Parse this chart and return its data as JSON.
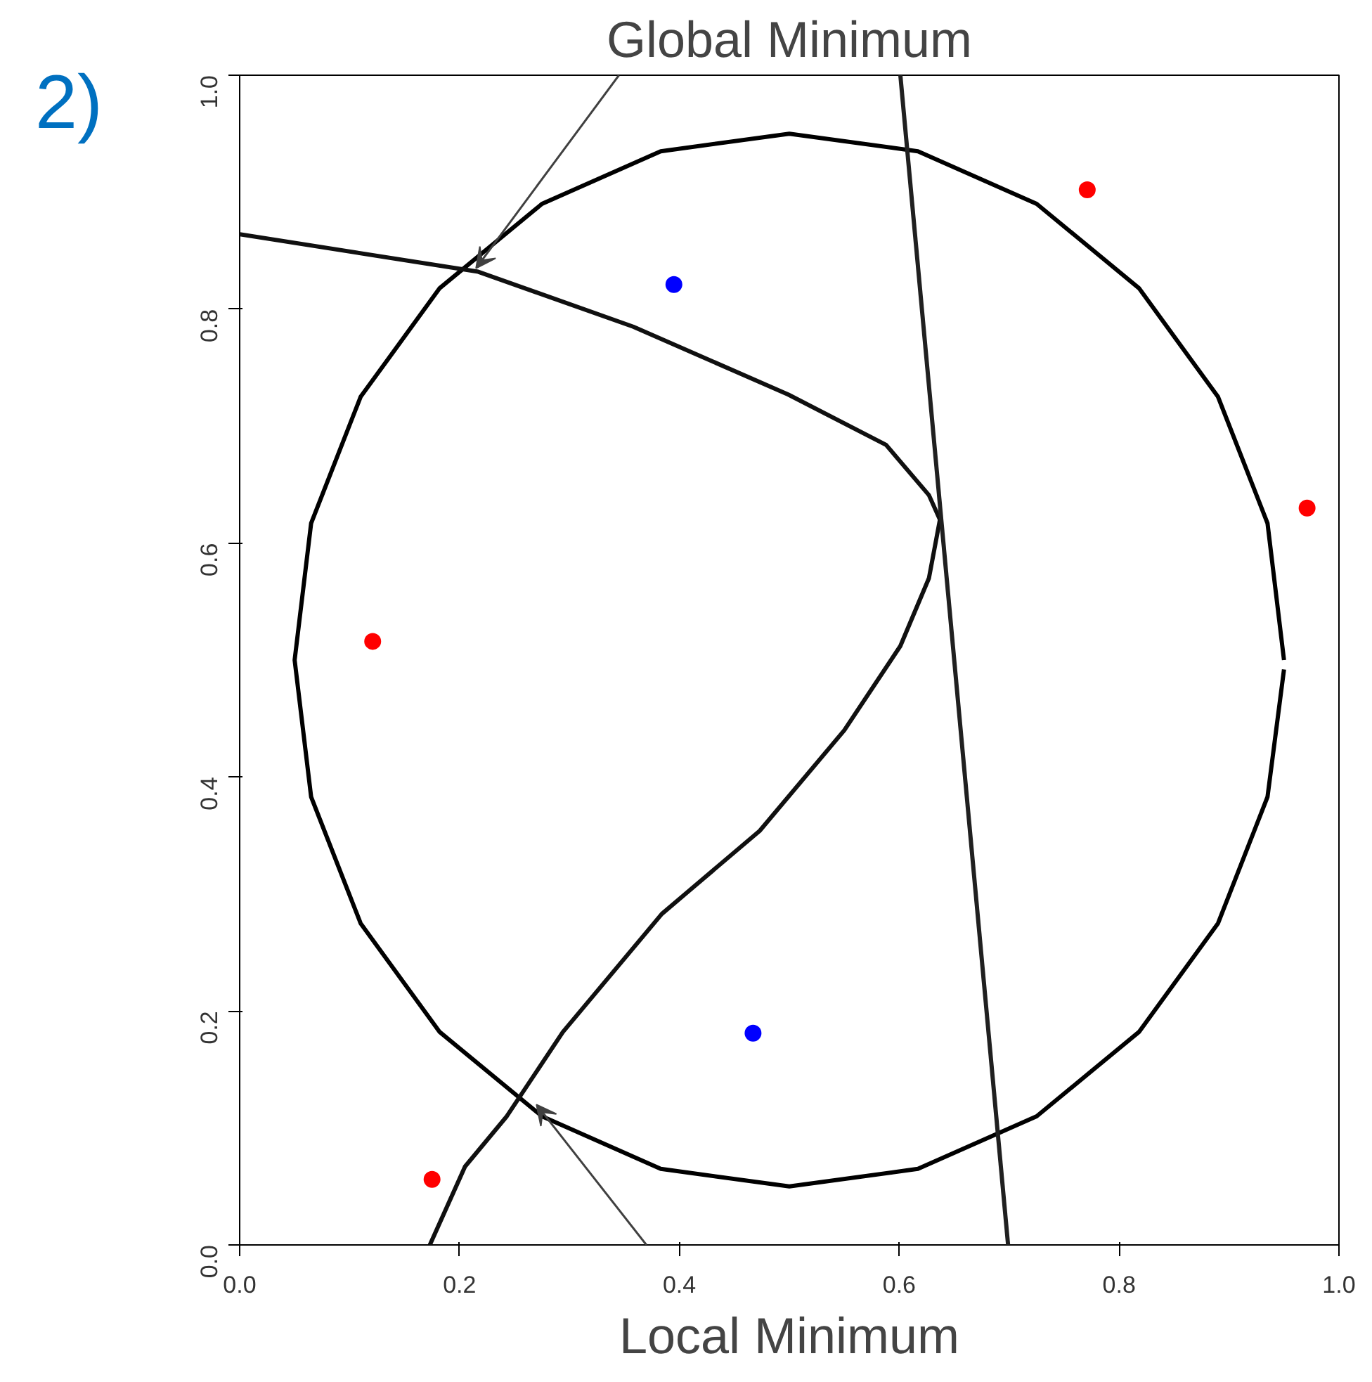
{
  "chart_data": {
    "type": "scatter",
    "title": "2)",
    "xlim": [
      0,
      1
    ],
    "ylim": [
      0,
      1
    ],
    "xticks": [
      {
        "value": 0,
        "label": "0.0"
      },
      0.2,
      0.4,
      0.6,
      0.8,
      {
        "value": 1,
        "label": "1.0"
      }
    ],
    "yticks": [
      {
        "value": 0,
        "label": "0.0"
      },
      0.2,
      0.4,
      0.6,
      0.8,
      {
        "value": 1,
        "label": "1.0"
      }
    ],
    "grid": false,
    "series": [
      {
        "type": "line",
        "color": "#000000",
        "x": [
          0.95,
          0.935,
          0.89,
          0.818,
          0.725,
          0.617,
          0.5,
          0.383,
          0.275,
          0.182,
          0.11,
          0.065,
          0.05,
          0.065,
          0.11,
          0.182,
          0.275,
          0.383,
          0.5,
          0.617,
          0.725,
          0.818,
          0.89,
          0.935,
          0.95
        ],
        "values": [
          0.5,
          0.617,
          0.725,
          0.818,
          0.89,
          0.935,
          0.95,
          0.935,
          0.89,
          0.818,
          0.725,
          0.617,
          0.5,
          0.383,
          0.275,
          0.182,
          0.11,
          0.065,
          0.05,
          0.065,
          0.11,
          0.182,
          0.275,
          0.383,
          0.492
        ]
      },
      {
        "type": "line",
        "color": "#101010",
        "x": [
          0.0,
          0.217,
          0.358,
          0.499,
          0.588,
          0.627,
          0.637,
          0.627,
          0.601,
          0.55,
          0.473,
          0.384,
          0.294,
          0.243,
          0.205,
          0.173
        ],
        "values": [
          0.864,
          0.832,
          0.785,
          0.727,
          0.684,
          0.641,
          0.62,
          0.57,
          0.512,
          0.44,
          0.354,
          0.283,
          0.182,
          0.11,
          0.067,
          0.0
        ]
      },
      {
        "type": "line",
        "color": "#202020",
        "x": [
          0.601,
          0.699
        ],
        "values": [
          1.0,
          0.0
        ]
      },
      {
        "color": "#ff0000",
        "x": [
          0.771,
          0.971,
          0.121,
          0.175
        ],
        "values": [
          0.902,
          0.63,
          0.516,
          0.056
        ]
      },
      {
        "color": "#0000ff",
        "x": [
          0.467,
          0.395
        ],
        "values": [
          0.181,
          0.821
        ]
      }
    ],
    "annotations": [
      {
        "text": "Global Minimum",
        "x": 0.215,
        "y": 0.835
      },
      {
        "text": "Local Minimum",
        "x": 0.27,
        "y": 0.12
      }
    ]
  }
}
